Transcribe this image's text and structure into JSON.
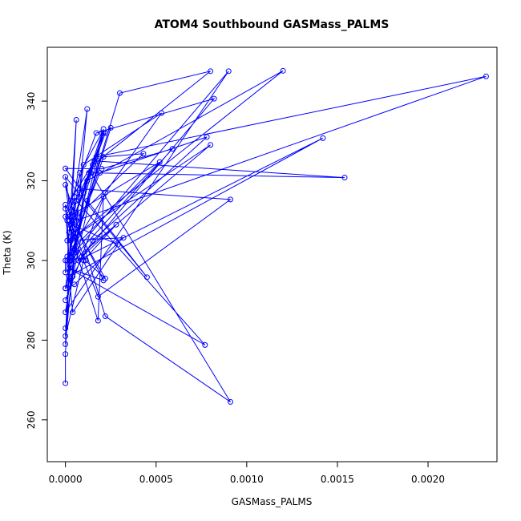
{
  "chart_data": {
    "type": "line",
    "title": "ATOM4 Southbound GASMass_PALMS",
    "xlabel": "GASMass_PALMS",
    "ylabel": "Theta (K)",
    "xlim": [
      -0.0001,
      0.00238
    ],
    "ylim": [
      249.5,
      353.5
    ],
    "x_ticks": [
      0,
      0.0005,
      0.001,
      0.0015,
      0.002
    ],
    "x_tick_labels": [
      "0.0000",
      "0.0005",
      "0.0010",
      "0.0015",
      "0.0020"
    ],
    "y_ticks": [
      260,
      280,
      300,
      320,
      340
    ],
    "y_tick_labels": [
      "260",
      "280",
      "300",
      "320",
      "340"
    ],
    "grid": false,
    "marker": "open-circle",
    "color": "#0000ff",
    "series": [
      {
        "x": [
          0.0,
          0.0,
          2e-05,
          5e-05,
          0.00012,
          0.0,
          3e-05,
          8e-05,
          0.0002,
          0.00025,
          2e-05,
          1e-05,
          0.00015,
          0.00022,
          0.0001,
          0.0,
          4e-05,
          0.00018,
          0.0008,
          0.0003,
          3e-05,
          0.0009,
          0.0,
          0.00012,
          0.0012,
          5e-05,
          0.00019,
          0.00078,
          0.00015,
          0.0,
          6e-05,
          0.00017,
          0.00232,
          6e-05,
          0.0001,
          0.00053,
          0.00022,
          0.0,
          9e-05,
          0.00082,
          0.00017,
          3e-05,
          7e-05,
          0.00142,
          2e-05,
          0.00013,
          0.00154,
          0.00016,
          0.0,
          0.00011,
          0.00022,
          2e-05,
          0.00052,
          4e-05,
          0.00021,
          0.00043,
          2e-05,
          0.00018,
          0.00091,
          8e-05,
          0.0,
          0.0002,
          0.00059,
          3e-05,
          0.00012,
          0.00045,
          0.0,
          6e-05,
          0.00018,
          0.00021,
          1e-05,
          4e-05,
          0.00029,
          3e-05,
          0.0,
          0.00022,
          0.00091,
          0.00014,
          0.0,
          5e-05,
          0.0008,
          2e-05,
          0.0,
          0.00021,
          2e-05,
          0.00077,
          6e-05,
          1e-05,
          0.00032,
          5e-05,
          0.0,
          0.00021,
          2e-05,
          0.00021,
          1e-05,
          6e-05,
          0.0,
          0.0001,
          0.00028,
          0.0,
          0.0
        ],
        "y": [
          269.2,
          276.5,
          296.0,
          316.0,
          338.0,
          279.0,
          305.0,
          322.0,
          332.0,
          333.3,
          300.0,
          310.0,
          324.0,
          332.0,
          317.0,
          283.0,
          296.0,
          325.0,
          347.5,
          342.0,
          301.0,
          347.5,
          287.0,
          320.0,
          347.6,
          306.0,
          322.0,
          331.0,
          305.0,
          293.0,
          312.0,
          326.0,
          346.2,
          310.0,
          324.0,
          337.0,
          317.0,
          290.0,
          301.0,
          340.6,
          332.0,
          315.0,
          300.0,
          330.7,
          296.0,
          322.0,
          320.8,
          325.0,
          313.0,
          300.0,
          295.5,
          311.0,
          324.7,
          303.0,
          326.0,
          326.8,
          309.0,
          290.9,
          315.3,
          318.0,
          323.1,
          323.0,
          328.0,
          300.0,
          315.0,
          295.8,
          321.0,
          302.0,
          284.9,
          316.0,
          301.0,
          287.0,
          304.0,
          309.0,
          319.0,
          286.0,
          264.5,
          322.0,
          311.0,
          306.0,
          329.0,
          299.0,
          314.0,
          295.0,
          298.0,
          278.8,
          315.0,
          305.0,
          305.7,
          294.0,
          293.0,
          332.0,
          307.0,
          333.0,
          300.0,
          335.3,
          281.0,
          300.0,
          309.0,
          297.0,
          300.0
        ]
      }
    ]
  }
}
